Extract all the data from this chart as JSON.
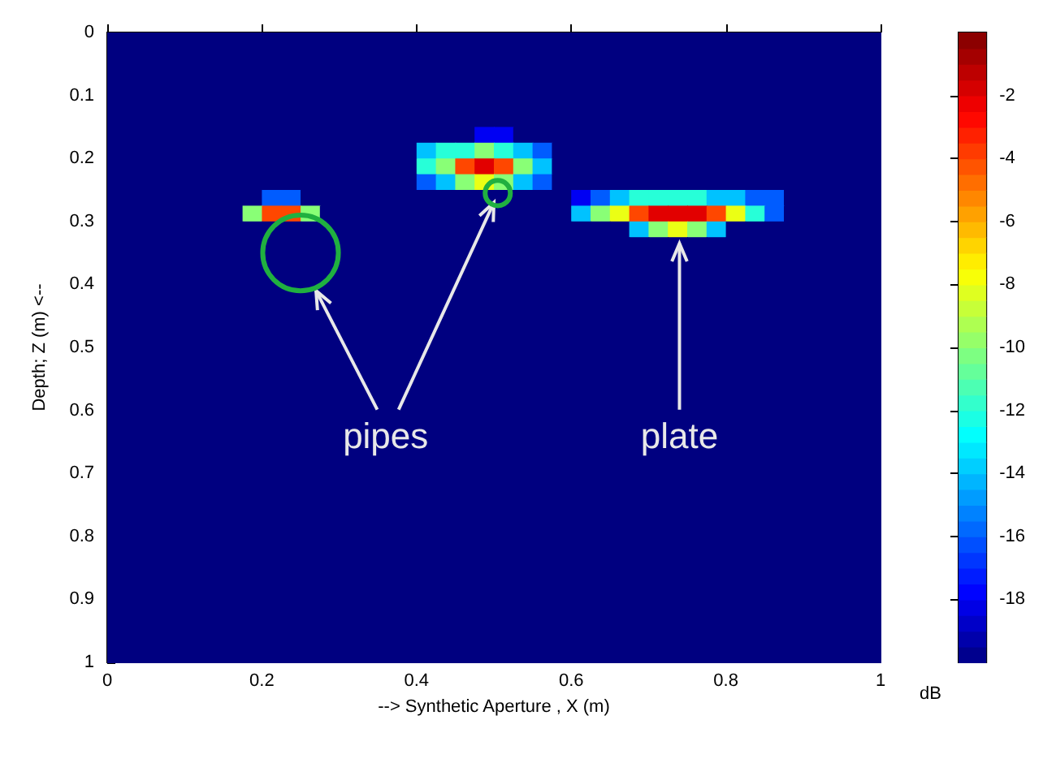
{
  "chart_data": {
    "type": "heatmap",
    "xlabel": "--> Synthetic Aperture , X (m)",
    "ylabel": "Depth; Z (m) <--",
    "clabel": "dB",
    "xlim": [
      0,
      1
    ],
    "xticks": [
      0,
      0.2,
      0.4,
      0.6,
      0.8,
      1
    ],
    "ylim": [
      1,
      0
    ],
    "yticks": [
      0,
      0.1,
      0.2,
      0.3,
      0.4,
      0.5,
      0.6,
      0.7,
      0.8,
      0.9,
      1
    ],
    "clim": [
      -20,
      0
    ],
    "cticks": [
      -2,
      -4,
      -6,
      -8,
      -10,
      -12,
      -14,
      -16,
      -18
    ],
    "annotations": [
      "pipes",
      "plate"
    ],
    "cells": [
      [
        -20,
        -20,
        -20,
        -20,
        -20,
        -20,
        -20,
        -20,
        -20,
        -20,
        -20,
        -20,
        -20,
        -20,
        -20,
        -20,
        -20,
        -20,
        -20,
        -20,
        -20,
        -20,
        -20,
        -20,
        -20,
        -20,
        -20,
        -20,
        -20,
        -20,
        -20,
        -20,
        -20,
        -20,
        -20,
        -20,
        -20,
        -20,
        -20,
        -20
      ],
      [
        -20,
        -20,
        -20,
        -20,
        -20,
        -20,
        -20,
        -20,
        -20,
        -20,
        -20,
        -20,
        -20,
        -20,
        -20,
        -20,
        -20,
        -20,
        -20,
        -20,
        -20,
        -20,
        -20,
        -20,
        -20,
        -20,
        -20,
        -20,
        -20,
        -20,
        -20,
        -20,
        -20,
        -20,
        -20,
        -20,
        -20,
        -20,
        -20,
        -20
      ],
      [
        -20,
        -20,
        -20,
        -20,
        -20,
        -20,
        -20,
        -20,
        -20,
        -20,
        -20,
        -20,
        -20,
        -20,
        -20,
        -20,
        -20,
        -20,
        -20,
        -20,
        -20,
        -20,
        -20,
        -20,
        -20,
        -20,
        -20,
        -20,
        -20,
        -20,
        -20,
        -20,
        -20,
        -20,
        -20,
        -20,
        -20,
        -20,
        -20,
        -20
      ],
      [
        -20,
        -20,
        -20,
        -20,
        -20,
        -20,
        -20,
        -20,
        -20,
        -20,
        -20,
        -20,
        -20,
        -20,
        -20,
        -20,
        -20,
        -20,
        -20,
        -20,
        -20,
        -20,
        -20,
        -20,
        -20,
        -20,
        -20,
        -20,
        -20,
        -20,
        -20,
        -20,
        -20,
        -20,
        -20,
        -20,
        -20,
        -20,
        -20,
        -20
      ],
      [
        -20,
        -20,
        -20,
        -20,
        -20,
        -20,
        -20,
        -20,
        -20,
        -20,
        -20,
        -20,
        -20,
        -20,
        -20,
        -20,
        -20,
        -20,
        -20,
        -20,
        -20,
        -20,
        -20,
        -20,
        -20,
        -20,
        -20,
        -20,
        -20,
        -20,
        -20,
        -20,
        -20,
        -20,
        -20,
        -20,
        -20,
        -20,
        -20,
        -20
      ],
      [
        -20,
        -20,
        -20,
        -20,
        -20,
        -20,
        -20,
        -20,
        -20,
        -20,
        -20,
        -20,
        -20,
        -20,
        -20,
        -20,
        -20,
        -20,
        -20,
        -20,
        -20,
        -20,
        -20,
        -20,
        -20,
        -20,
        -20,
        -20,
        -20,
        -20,
        -20,
        -20,
        -20,
        -20,
        -20,
        -20,
        -20,
        -20,
        -20,
        -20
      ],
      [
        -20,
        -20,
        -20,
        -20,
        -20,
        -20,
        -20,
        -20,
        -20,
        -20,
        -20,
        -20,
        -20,
        -20,
        -20,
        -20,
        -20,
        -20,
        -20,
        -18,
        -18,
        -20,
        -20,
        -20,
        -20,
        -20,
        -20,
        -20,
        -20,
        -20,
        -20,
        -20,
        -20,
        -20,
        -20,
        -20,
        -20,
        -20,
        -20,
        -20
      ],
      [
        -20,
        -20,
        -20,
        -20,
        -20,
        -20,
        -20,
        -20,
        -20,
        -20,
        -20,
        -20,
        -20,
        -20,
        -20,
        -20,
        -14,
        -12,
        -12,
        -10,
        -12,
        -14,
        -16,
        -20,
        -20,
        -20,
        -20,
        -20,
        -20,
        -20,
        -20,
        -20,
        -20,
        -20,
        -20,
        -20,
        -20,
        -20,
        -20,
        -20
      ],
      [
        -20,
        -20,
        -20,
        -20,
        -20,
        -20,
        -20,
        -20,
        -20,
        -20,
        -20,
        -20,
        -20,
        -20,
        -20,
        -20,
        -12,
        -10,
        -4,
        -2,
        -4,
        -10,
        -14,
        -20,
        -20,
        -20,
        -20,
        -20,
        -20,
        -20,
        -20,
        -20,
        -20,
        -20,
        -20,
        -20,
        -20,
        -20,
        -20,
        -20
      ],
      [
        -20,
        -20,
        -20,
        -20,
        -20,
        -20,
        -20,
        -20,
        -20,
        -20,
        -20,
        -20,
        -20,
        -20,
        -20,
        -20,
        -16,
        -14,
        -10,
        -8,
        -10,
        -14,
        -16,
        -20,
        -20,
        -20,
        -20,
        -20,
        -20,
        -20,
        -20,
        -20,
        -20,
        -20,
        -20,
        -20,
        -20,
        -20,
        -20,
        -20
      ],
      [
        -20,
        -20,
        -20,
        -20,
        -20,
        -20,
        -20,
        -20,
        -16,
        -16,
        -20,
        -20,
        -20,
        -20,
        -20,
        -20,
        -20,
        -20,
        -20,
        -20,
        -20,
        -20,
        -20,
        -20,
        -18,
        -16,
        -14,
        -12,
        -12,
        -12,
        -12,
        -14,
        -14,
        -16,
        -16,
        -20,
        -20,
        -20,
        -20,
        -20
      ],
      [
        -20,
        -20,
        -20,
        -20,
        -20,
        -20,
        -20,
        -10,
        -4,
        -4,
        -10,
        -20,
        -20,
        -20,
        -20,
        -20,
        -20,
        -20,
        -20,
        -20,
        -20,
        -20,
        -20,
        -20,
        -14,
        -10,
        -8,
        -4,
        -2,
        -2,
        -2,
        -4,
        -8,
        -12,
        -16,
        -20,
        -20,
        -20,
        -20,
        -20
      ],
      [
        -20,
        -20,
        -20,
        -20,
        -20,
        -20,
        -20,
        -20,
        -20,
        -20,
        -20,
        -20,
        -20,
        -20,
        -20,
        -20,
        -20,
        -20,
        -20,
        -20,
        -20,
        -20,
        -20,
        -20,
        -20,
        -20,
        -20,
        -14,
        -10,
        -8,
        -10,
        -14,
        -20,
        -20,
        -20,
        -20,
        -20,
        -20,
        -20,
        -20
      ],
      [
        -20,
        -20,
        -20,
        -20,
        -20,
        -20,
        -20,
        -20,
        -20,
        -20,
        -20,
        -20,
        -20,
        -20,
        -20,
        -20,
        -20,
        -20,
        -20,
        -20,
        -20,
        -20,
        -20,
        -20,
        -20,
        -20,
        -20,
        -20,
        -20,
        -20,
        -20,
        -20,
        -20,
        -20,
        -20,
        -20,
        -20,
        -20,
        -20,
        -20
      ],
      [
        -20,
        -20,
        -20,
        -20,
        -20,
        -20,
        -20,
        -20,
        -20,
        -20,
        -20,
        -20,
        -20,
        -20,
        -20,
        -20,
        -20,
        -20,
        -20,
        -20,
        -20,
        -20,
        -20,
        -20,
        -20,
        -20,
        -20,
        -20,
        -20,
        -20,
        -20,
        -20,
        -20,
        -20,
        -20,
        -20,
        -20,
        -20,
        -20,
        -20
      ],
      [
        -20,
        -20,
        -20,
        -20,
        -20,
        -20,
        -20,
        -20,
        -20,
        -20,
        -20,
        -20,
        -20,
        -20,
        -20,
        -20,
        -20,
        -20,
        -20,
        -20,
        -20,
        -20,
        -20,
        -20,
        -20,
        -20,
        -20,
        -20,
        -20,
        -20,
        -20,
        -20,
        -20,
        -20,
        -20,
        -20,
        -20,
        -20,
        -20,
        -20
      ],
      [
        -20,
        -20,
        -20,
        -20,
        -20,
        -20,
        -20,
        -20,
        -20,
        -20,
        -20,
        -20,
        -20,
        -20,
        -20,
        -20,
        -20,
        -20,
        -20,
        -20,
        -20,
        -20,
        -20,
        -20,
        -20,
        -20,
        -20,
        -20,
        -20,
        -20,
        -20,
        -20,
        -20,
        -20,
        -20,
        -20,
        -20,
        -20,
        -20,
        -20
      ],
      [
        -20,
        -20,
        -20,
        -20,
        -20,
        -20,
        -20,
        -20,
        -20,
        -20,
        -20,
        -20,
        -20,
        -20,
        -20,
        -20,
        -20,
        -20,
        -20,
        -20,
        -20,
        -20,
        -20,
        -20,
        -20,
        -20,
        -20,
        -20,
        -20,
        -20,
        -20,
        -20,
        -20,
        -20,
        -20,
        -20,
        -20,
        -20,
        -20,
        -20
      ],
      [
        -20,
        -20,
        -20,
        -20,
        -20,
        -20,
        -20,
        -20,
        -20,
        -20,
        -20,
        -20,
        -20,
        -20,
        -20,
        -20,
        -20,
        -20,
        -20,
        -20,
        -20,
        -20,
        -20,
        -20,
        -20,
        -20,
        -20,
        -20,
        -20,
        -20,
        -20,
        -20,
        -20,
        -20,
        -20,
        -20,
        -20,
        -20,
        -20,
        -20
      ],
      [
        -20,
        -20,
        -20,
        -20,
        -20,
        -20,
        -20,
        -20,
        -20,
        -20,
        -20,
        -20,
        -20,
        -20,
        -20,
        -20,
        -20,
        -20,
        -20,
        -20,
        -20,
        -20,
        -20,
        -20,
        -20,
        -20,
        -20,
        -20,
        -20,
        -20,
        -20,
        -20,
        -20,
        -20,
        -20,
        -20,
        -20,
        -20,
        -20,
        -20
      ],
      [
        -20,
        -20,
        -20,
        -20,
        -20,
        -20,
        -20,
        -20,
        -20,
        -20,
        -20,
        -20,
        -20,
        -20,
        -20,
        -20,
        -20,
        -20,
        -20,
        -20,
        -20,
        -20,
        -20,
        -20,
        -20,
        -20,
        -20,
        -20,
        -20,
        -20,
        -20,
        -20,
        -20,
        -20,
        -20,
        -20,
        -20,
        -20,
        -20,
        -20
      ],
      [
        -20,
        -20,
        -20,
        -20,
        -20,
        -20,
        -20,
        -20,
        -20,
        -20,
        -20,
        -20,
        -20,
        -20,
        -20,
        -20,
        -20,
        -20,
        -20,
        -20,
        -20,
        -20,
        -20,
        -20,
        -20,
        -20,
        -20,
        -20,
        -20,
        -20,
        -20,
        -20,
        -20,
        -20,
        -20,
        -20,
        -20,
        -20,
        -20,
        -20
      ],
      [
        -20,
        -20,
        -20,
        -20,
        -20,
        -20,
        -20,
        -20,
        -20,
        -20,
        -20,
        -20,
        -20,
        -20,
        -20,
        -20,
        -20,
        -20,
        -20,
        -20,
        -20,
        -20,
        -20,
        -20,
        -20,
        -20,
        -20,
        -20,
        -20,
        -20,
        -20,
        -20,
        -20,
        -20,
        -20,
        -20,
        -20,
        -20,
        -20,
        -20
      ],
      [
        -20,
        -20,
        -20,
        -20,
        -20,
        -20,
        -20,
        -20,
        -20,
        -20,
        -20,
        -20,
        -20,
        -20,
        -20,
        -20,
        -20,
        -20,
        -20,
        -20,
        -20,
        -20,
        -20,
        -20,
        -20,
        -20,
        -20,
        -20,
        -20,
        -20,
        -20,
        -20,
        -20,
        -20,
        -20,
        -20,
        -20,
        -20,
        -20,
        -20
      ],
      [
        -20,
        -20,
        -20,
        -20,
        -20,
        -20,
        -20,
        -20,
        -20,
        -20,
        -20,
        -20,
        -20,
        -20,
        -20,
        -20,
        -20,
        -20,
        -20,
        -20,
        -20,
        -20,
        -20,
        -20,
        -20,
        -20,
        -20,
        -20,
        -20,
        -20,
        -20,
        -20,
        -20,
        -20,
        -20,
        -20,
        -20,
        -20,
        -20,
        -20
      ],
      [
        -20,
        -20,
        -20,
        -20,
        -20,
        -20,
        -20,
        -20,
        -20,
        -20,
        -20,
        -20,
        -20,
        -20,
        -20,
        -20,
        -20,
        -20,
        -20,
        -20,
        -20,
        -20,
        -20,
        -20,
        -20,
        -20,
        -20,
        -20,
        -20,
        -20,
        -20,
        -20,
        -20,
        -20,
        -20,
        -20,
        -20,
        -20,
        -20,
        -20
      ],
      [
        -20,
        -20,
        -20,
        -20,
        -20,
        -20,
        -20,
        -20,
        -20,
        -20,
        -20,
        -20,
        -20,
        -20,
        -20,
        -20,
        -20,
        -20,
        -20,
        -20,
        -20,
        -20,
        -20,
        -20,
        -20,
        -20,
        -20,
        -20,
        -20,
        -20,
        -20,
        -20,
        -20,
        -20,
        -20,
        -20,
        -20,
        -20,
        -20,
        -20
      ],
      [
        -20,
        -20,
        -20,
        -20,
        -20,
        -20,
        -20,
        -20,
        -20,
        -20,
        -20,
        -20,
        -20,
        -20,
        -20,
        -20,
        -20,
        -20,
        -20,
        -20,
        -20,
        -20,
        -20,
        -20,
        -20,
        -20,
        -20,
        -20,
        -20,
        -20,
        -20,
        -20,
        -20,
        -20,
        -20,
        -20,
        -20,
        -20,
        -20,
        -20
      ],
      [
        -20,
        -20,
        -20,
        -20,
        -20,
        -20,
        -20,
        -20,
        -20,
        -20,
        -20,
        -20,
        -20,
        -20,
        -20,
        -20,
        -20,
        -20,
        -20,
        -20,
        -20,
        -20,
        -20,
        -20,
        -20,
        -20,
        -20,
        -20,
        -20,
        -20,
        -20,
        -20,
        -20,
        -20,
        -20,
        -20,
        -20,
        -20,
        -20,
        -20
      ],
      [
        -20,
        -20,
        -20,
        -20,
        -20,
        -20,
        -20,
        -20,
        -20,
        -20,
        -20,
        -20,
        -20,
        -20,
        -20,
        -20,
        -20,
        -20,
        -20,
        -20,
        -20,
        -20,
        -20,
        -20,
        -20,
        -20,
        -20,
        -20,
        -20,
        -20,
        -20,
        -20,
        -20,
        -20,
        -20,
        -20,
        -20,
        -20,
        -20,
        -20
      ],
      [
        -20,
        -20,
        -20,
        -20,
        -20,
        -20,
        -20,
        -20,
        -20,
        -20,
        -20,
        -20,
        -20,
        -20,
        -20,
        -20,
        -20,
        -20,
        -20,
        -20,
        -20,
        -20,
        -20,
        -20,
        -20,
        -20,
        -20,
        -20,
        -20,
        -20,
        -20,
        -20,
        -20,
        -20,
        -20,
        -20,
        -20,
        -20,
        -20,
        -20
      ],
      [
        -20,
        -20,
        -20,
        -20,
        -20,
        -20,
        -20,
        -20,
        -20,
        -20,
        -20,
        -20,
        -20,
        -20,
        -20,
        -20,
        -20,
        -20,
        -20,
        -20,
        -20,
        -20,
        -20,
        -20,
        -20,
        -20,
        -20,
        -20,
        -20,
        -20,
        -20,
        -20,
        -20,
        -20,
        -20,
        -20,
        -20,
        -20,
        -20,
        -20
      ],
      [
        -20,
        -20,
        -20,
        -20,
        -20,
        -20,
        -20,
        -20,
        -20,
        -20,
        -20,
        -20,
        -20,
        -20,
        -20,
        -20,
        -20,
        -20,
        -20,
        -20,
        -20,
        -20,
        -20,
        -20,
        -20,
        -20,
        -20,
        -20,
        -20,
        -20,
        -20,
        -20,
        -20,
        -20,
        -20,
        -20,
        -20,
        -20,
        -20,
        -20
      ],
      [
        -20,
        -20,
        -20,
        -20,
        -20,
        -20,
        -20,
        -20,
        -20,
        -20,
        -20,
        -20,
        -20,
        -20,
        -20,
        -20,
        -20,
        -20,
        -20,
        -20,
        -20,
        -20,
        -20,
        -20,
        -20,
        -20,
        -20,
        -20,
        -20,
        -20,
        -20,
        -20,
        -20,
        -20,
        -20,
        -20,
        -20,
        -20,
        -20,
        -20
      ],
      [
        -20,
        -20,
        -20,
        -20,
        -20,
        -20,
        -20,
        -20,
        -20,
        -20,
        -20,
        -20,
        -20,
        -20,
        -20,
        -20,
        -20,
        -20,
        -20,
        -20,
        -20,
        -20,
        -20,
        -20,
        -20,
        -20,
        -20,
        -20,
        -20,
        -20,
        -20,
        -20,
        -20,
        -20,
        -20,
        -20,
        -20,
        -20,
        -20,
        -20
      ],
      [
        -20,
        -20,
        -20,
        -20,
        -20,
        -20,
        -20,
        -20,
        -20,
        -20,
        -20,
        -20,
        -20,
        -20,
        -20,
        -20,
        -20,
        -20,
        -20,
        -20,
        -20,
        -20,
        -20,
        -20,
        -20,
        -20,
        -20,
        -20,
        -20,
        -20,
        -20,
        -20,
        -20,
        -20,
        -20,
        -20,
        -20,
        -20,
        -20,
        -20
      ],
      [
        -20,
        -20,
        -20,
        -20,
        -20,
        -20,
        -20,
        -20,
        -20,
        -20,
        -20,
        -20,
        -20,
        -20,
        -20,
        -20,
        -20,
        -20,
        -20,
        -20,
        -20,
        -20,
        -20,
        -20,
        -20,
        -20,
        -20,
        -20,
        -20,
        -20,
        -20,
        -20,
        -20,
        -20,
        -20,
        -20,
        -20,
        -20,
        -20,
        -20
      ],
      [
        -20,
        -20,
        -20,
        -20,
        -20,
        -20,
        -20,
        -20,
        -20,
        -20,
        -20,
        -20,
        -20,
        -20,
        -20,
        -20,
        -20,
        -20,
        -20,
        -20,
        -20,
        -20,
        -20,
        -20,
        -20,
        -20,
        -20,
        -20,
        -20,
        -20,
        -20,
        -20,
        -20,
        -20,
        -20,
        -20,
        -20,
        -20,
        -20,
        -20
      ],
      [
        -20,
        -20,
        -20,
        -20,
        -20,
        -20,
        -20,
        -20,
        -20,
        -20,
        -20,
        -20,
        -20,
        -20,
        -20,
        -20,
        -20,
        -20,
        -20,
        -20,
        -20,
        -20,
        -20,
        -20,
        -20,
        -20,
        -20,
        -20,
        -20,
        -20,
        -20,
        -20,
        -20,
        -20,
        -20,
        -20,
        -20,
        -20,
        -20,
        -20
      ],
      [
        -20,
        -20,
        -20,
        -20,
        -20,
        -20,
        -20,
        -20,
        -20,
        -20,
        -20,
        -20,
        -20,
        -20,
        -20,
        -20,
        -20,
        -20,
        -20,
        -20,
        -20,
        -20,
        -20,
        -20,
        -20,
        -20,
        -20,
        -20,
        -20,
        -20,
        -20,
        -20,
        -20,
        -20,
        -20,
        -20,
        -20,
        -20,
        -20,
        -20
      ]
    ]
  }
}
